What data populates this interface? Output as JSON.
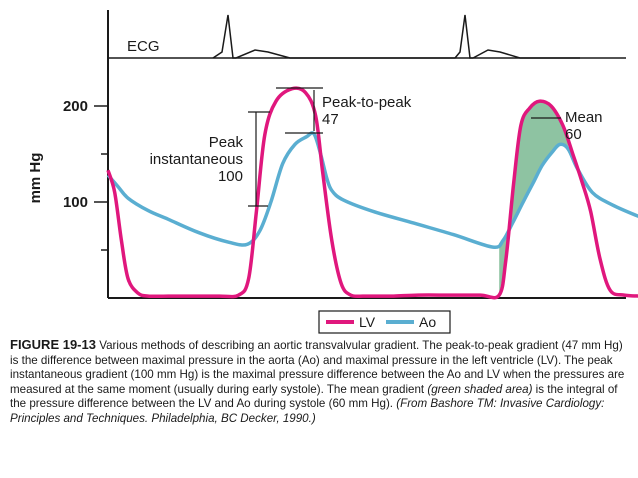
{
  "chart_data": {
    "type": "line",
    "ylabel": "mm Hg",
    "yticks": [
      100,
      200
    ],
    "ylim": [
      0,
      240
    ],
    "xlim": [
      0,
      100
    ],
    "ecg_label": "ECG",
    "legend": {
      "placement": "bottom-center",
      "entries": [
        "LV",
        "Ao"
      ]
    },
    "colors": {
      "lv": "#e0177d",
      "ao": "#5aaed1",
      "mean_fill": "#8ec3a2",
      "axis": "#1a1a1a"
    },
    "series": [
      {
        "name": "LV",
        "x": [
          0,
          1.2,
          2.4,
          3.6,
          5.4,
          7.2,
          10.8,
          14.4,
          19.8,
          23.4,
          25.2,
          26.6,
          28.1,
          30.1,
          33.0,
          35.4,
          37.2,
          38.5,
          40.1,
          41.8,
          43.5,
          45.8,
          47.8,
          51.2,
          55.6,
          61.2,
          66.7,
          70.1,
          71.3,
          72.7,
          74.0,
          75.6,
          77.3,
          79.4,
          81.5,
          83.3,
          85.0,
          86.5,
          88.2,
          90.0,
          92.5,
          96.1,
          100
        ],
        "y": [
          133,
          110,
          60,
          20,
          5,
          2,
          2,
          2,
          2,
          3,
          20,
          90,
          170,
          205,
          218,
          214,
          190,
          130,
          60,
          15,
          3,
          2,
          2,
          2,
          3,
          3,
          3,
          3,
          40,
          120,
          180,
          198,
          205,
          200,
          180,
          150,
          120,
          90,
          40,
          8,
          3,
          2,
          2
        ]
      },
      {
        "name": "Ao",
        "x": [
          0,
          1.8,
          3.6,
          7.2,
          10.8,
          16.3,
          21.7,
          25.0,
          27.2,
          29.2,
          31.3,
          33.5,
          35.6,
          36.9,
          38.1,
          39.2,
          40.1,
          42.2,
          47.6,
          54.8,
          61.9,
          69.0,
          70.8,
          72.5,
          74.4,
          76.2,
          77.8,
          79.6,
          81.0,
          82.5,
          84.1,
          86.8,
          90.4,
          95.1,
          99.6
        ],
        "y": [
          128,
          116,
          104,
          91,
          82,
          68,
          58,
          56,
          70,
          100,
          140,
          160,
          168,
          171,
          150,
          125,
          112,
          102,
          90,
          78,
          66,
          53,
          60,
          78,
          100,
          120,
          138,
          152,
          160,
          155,
          135,
          110,
          97,
          85,
          75
        ]
      }
    ],
    "annotations": [
      {
        "lines": [
          "Peak-to-peak",
          "47"
        ]
      },
      {
        "lines": [
          "Peak",
          "instantaneous",
          "100"
        ]
      },
      {
        "lines": [
          "Mean",
          "60"
        ]
      }
    ],
    "shaded_region": {
      "label": "mean gradient (LV minus Ao during systole)",
      "x_from": 70.1,
      "x_to": 82.5
    }
  },
  "caption": {
    "figure_label": "FIGURE 19-13",
    "text_a": " Various methods of describing an aortic transvalvular gradient. The peak-to-peak gradient (47 mm Hg) is the difference between maximal pressure in the aorta (Ao) and maximal pressure in the left ventricle (LV). The peak instantaneous gradient (100 mm Hg) is the maximal pressure difference between the Ao and LV when the pressures are measured at the same moment (usually during early systole). The mean gradient ",
    "text_b": "(green shaded area)",
    "text_c": " is the integral of the pressure difference between the LV and Ao during systole (60 mm Hg). ",
    "source": "(From Bashore TM: Invasive Cardiology: Principles and Techniques. Philadelphia, BC Decker, 1990.)"
  }
}
